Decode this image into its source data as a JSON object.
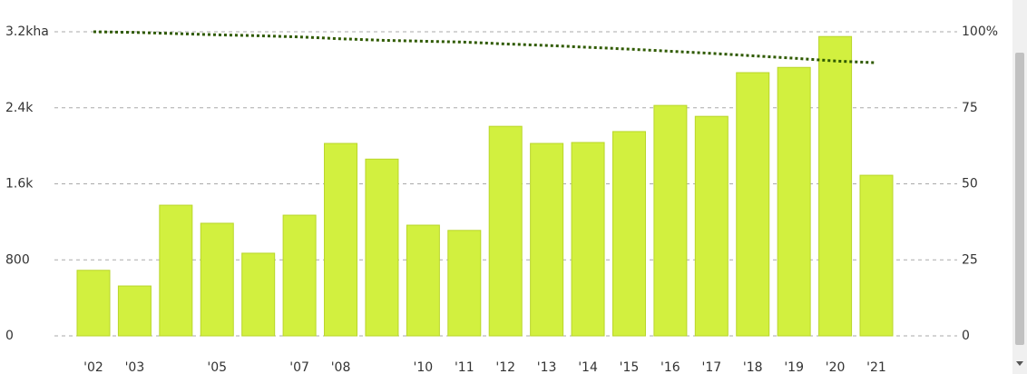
{
  "chart_data": {
    "type": "bar",
    "categories": [
      "'02",
      "'03",
      null,
      "'05",
      null,
      "'07",
      "'08",
      null,
      "'10",
      "'11",
      "'12",
      "'13",
      "'14",
      "'15",
      "'16",
      "'17",
      "'18",
      "'19",
      "'20",
      "'21"
    ],
    "series": [
      {
        "type": "bar",
        "color": "#d2f03f",
        "values": [
          690,
          525,
          1375,
          1185,
          870,
          1270,
          2025,
          1860,
          1165,
          1110,
          2205,
          2025,
          2035,
          2150,
          2425,
          2310,
          2770,
          2825,
          3150,
          1690
        ]
      },
      {
        "type": "line",
        "axis": "y2",
        "color": "#2f5a00",
        "values": [
          100,
          99.8,
          99.4,
          99.0,
          98.7,
          98.3,
          97.7,
          97.2,
          96.9,
          96.6,
          96.0,
          95.5,
          94.9,
          94.3,
          93.6,
          92.9,
          92.1,
          91.3,
          90.4,
          89.8
        ]
      }
    ],
    "ylim": [
      0,
      3200
    ],
    "yticks": [
      0,
      800,
      {
        "value": 1600,
        "label": "1.6k"
      },
      {
        "value": 2400,
        "label": "2.4k"
      },
      {
        "value": 3200,
        "label": "3.2kha"
      }
    ],
    "y2lim": [
      0,
      100
    ],
    "y2ticks": [
      0,
      25,
      50,
      75,
      {
        "value": 100,
        "label": "100%"
      }
    ],
    "grid": true
  }
}
